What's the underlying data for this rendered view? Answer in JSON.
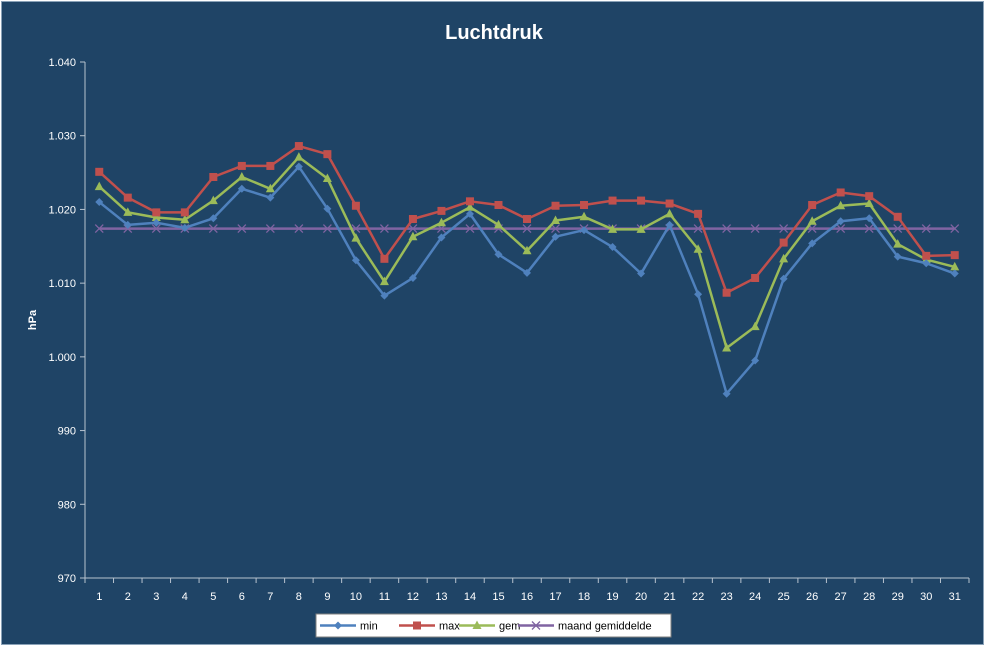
{
  "chart_data": {
    "type": "line",
    "title": "Luchtdruk",
    "xlabel": "",
    "ylabel": "hPa",
    "ylim": [
      970,
      1040
    ],
    "yticks": [
      {
        "value": 970,
        "label": "970"
      },
      {
        "value": 980,
        "label": "980"
      },
      {
        "value": 990,
        "label": "990"
      },
      {
        "value": 1000,
        "label": "1.000"
      },
      {
        "value": 1010,
        "label": "1.010"
      },
      {
        "value": 1020,
        "label": "1.020"
      },
      {
        "value": 1030,
        "label": "1.030"
      },
      {
        "value": 1040,
        "label": "1.040"
      }
    ],
    "categories": [
      "1",
      "2",
      "3",
      "4",
      "5",
      "6",
      "7",
      "8",
      "9",
      "10",
      "11",
      "12",
      "13",
      "14",
      "15",
      "16",
      "17",
      "18",
      "19",
      "20",
      "21",
      "22",
      "23",
      "24",
      "25",
      "26",
      "27",
      "28",
      "29",
      "30",
      "31"
    ],
    "grid": false,
    "legend_position": "bottom",
    "series": [
      {
        "name": "min",
        "color": "#4f81bd",
        "marker": "diamond",
        "values": [
          1021.0,
          1017.9,
          1018.2,
          1017.5,
          1018.8,
          1022.8,
          1021.6,
          1025.8,
          1020.1,
          1013.1,
          1008.3,
          1010.7,
          1016.2,
          1019.4,
          1013.9,
          1011.4,
          1016.3,
          1017.2,
          1014.9,
          1011.3,
          1017.9,
          1008.5,
          995.0,
          999.5,
          1010.6,
          1015.4,
          1018.4,
          1018.8,
          1013.6,
          1012.7,
          1011.3
        ]
      },
      {
        "name": "max",
        "color": "#c0504d",
        "marker": "square",
        "values": [
          1025.1,
          1021.6,
          1019.6,
          1019.6,
          1024.4,
          1025.9,
          1025.9,
          1028.6,
          1027.5,
          1020.5,
          1013.3,
          1018.7,
          1019.8,
          1021.1,
          1020.6,
          1018.7,
          1020.5,
          1020.6,
          1021.2,
          1021.2,
          1020.8,
          1019.4,
          1008.7,
          1010.7,
          1015.5,
          1020.6,
          1022.3,
          1021.8,
          1019.0,
          1013.7,
          1013.8
        ]
      },
      {
        "name": "gem",
        "color": "#9bbb59",
        "marker": "triangle",
        "values": [
          1023.1,
          1019.6,
          1018.9,
          1018.6,
          1021.2,
          1024.4,
          1022.8,
          1027.1,
          1024.2,
          1016.1,
          1010.2,
          1016.3,
          1018.2,
          1020.3,
          1017.9,
          1014.4,
          1018.5,
          1019.0,
          1017.3,
          1017.3,
          1019.4,
          1014.6,
          1001.2,
          1004.1,
          1013.3,
          1018.4,
          1020.5,
          1020.8,
          1015.3,
          1013.2,
          1012.2
        ]
      },
      {
        "name": "maand gemiddelde",
        "color": "#8064a2",
        "marker": "x",
        "values": [
          1017.4,
          1017.4,
          1017.4,
          1017.4,
          1017.4,
          1017.4,
          1017.4,
          1017.4,
          1017.4,
          1017.4,
          1017.4,
          1017.4,
          1017.4,
          1017.4,
          1017.4,
          1017.4,
          1017.4,
          1017.4,
          1017.4,
          1017.4,
          1017.4,
          1017.4,
          1017.4,
          1017.4,
          1017.4,
          1017.4,
          1017.4,
          1017.4,
          1017.4,
          1017.4,
          1017.4
        ]
      }
    ]
  }
}
